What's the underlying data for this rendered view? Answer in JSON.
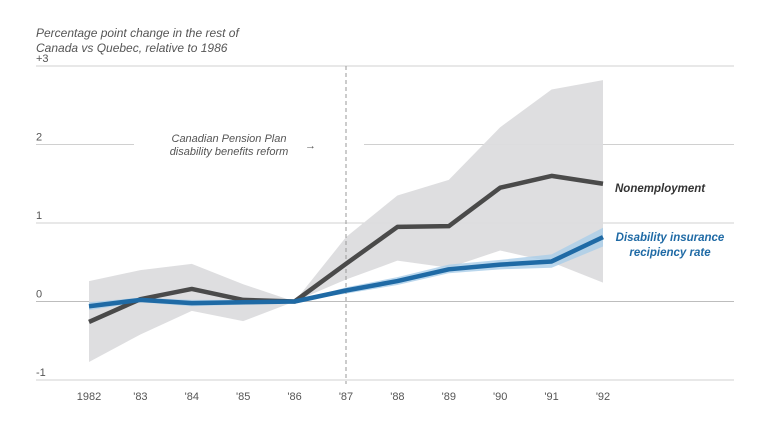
{
  "chart_data": {
    "type": "line",
    "title": "",
    "ylabel": "Percentage point change in the rest of Canada vs Quebec, relative to 1986",
    "ylabel_lines": [
      "Percentage point change in the rest of",
      "Canada vs Quebec, relative to 1986"
    ],
    "xlabel": "",
    "ylim": [
      -1,
      3
    ],
    "yticks": [
      3,
      2,
      1,
      0,
      -1
    ],
    "ytick_labels": [
      "+3",
      "2",
      "1",
      "0",
      "-1"
    ],
    "x": [
      1982,
      1983,
      1984,
      1985,
      1986,
      1987,
      1988,
      1989,
      1990,
      1991,
      1992
    ],
    "xtick_labels": [
      "1982",
      "'83",
      "'84",
      "'85",
      "'86",
      "'87",
      "'88",
      "'89",
      "'90",
      "'91",
      "'92"
    ],
    "reform_year": 1987,
    "annotation_lines": [
      "Canadian Pension Plan",
      "disability benefits reform"
    ],
    "annotation_arrow": "→",
    "series": [
      {
        "name": "Nonemployment",
        "color": "#4a4a4a",
        "values": [
          -0.26,
          0.03,
          0.16,
          0.02,
          0.0,
          0.48,
          0.95,
          0.96,
          1.45,
          1.6,
          1.5
        ],
        "ci_upper": [
          0.26,
          0.4,
          0.48,
          0.22,
          0.0,
          0.82,
          1.35,
          1.55,
          2.22,
          2.7,
          2.82
        ],
        "ci_lower": [
          -0.77,
          -0.42,
          -0.12,
          -0.25,
          0.0,
          0.28,
          0.52,
          0.43,
          0.65,
          0.5,
          0.24
        ],
        "label_lines": [
          "Nonemployment"
        ]
      },
      {
        "name": "Disability insurance recipiency rate",
        "color": "#1f6aa5",
        "band_color": "#a9cde8",
        "values": [
          -0.06,
          0.02,
          -0.02,
          -0.01,
          0.0,
          0.14,
          0.26,
          0.41,
          0.47,
          0.51,
          0.82
        ],
        "ci_upper": [
          -0.01,
          0.05,
          0.02,
          0.02,
          0.0,
          0.18,
          0.31,
          0.47,
          0.53,
          0.6,
          0.94
        ],
        "ci_lower": [
          -0.11,
          -0.01,
          -0.06,
          -0.04,
          0.0,
          0.1,
          0.21,
          0.36,
          0.41,
          0.43,
          0.7
        ],
        "label_lines": [
          "Disability insurance",
          "recipiency rate"
        ]
      }
    ]
  }
}
